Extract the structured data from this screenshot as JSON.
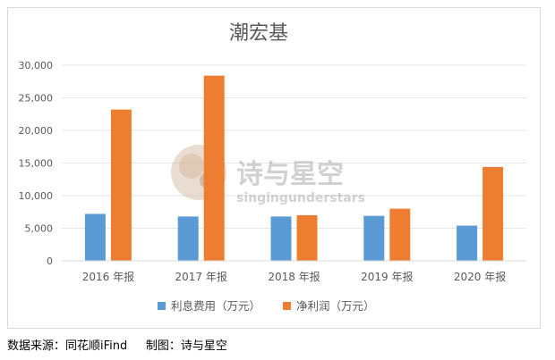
{
  "chart_data": {
    "type": "bar",
    "title": "潮宏基",
    "categories": [
      "2016 年报",
      "2017 年报",
      "2018 年报",
      "2019 年报",
      "2020 年报"
    ],
    "series": [
      {
        "name": "利息费用（万元）",
        "color": "#5b9bd5",
        "values": [
          7200,
          6800,
          6800,
          6900,
          5400
        ]
      },
      {
        "name": "净利润（万元）",
        "color": "#ed7d31",
        "values": [
          23200,
          28400,
          7000,
          8000,
          14400
        ]
      }
    ],
    "ylim": [
      0,
      30000
    ],
    "yticks": [
      "0",
      "5,000",
      "10,000",
      "15,000",
      "20,000",
      "25,000",
      "30,000"
    ],
    "ytick_values": [
      0,
      5000,
      10000,
      15000,
      20000,
      25000,
      30000
    ],
    "grid": true,
    "legend": "bottom"
  },
  "watermark": {
    "main": "诗与星空",
    "sub": "singingunderstars"
  },
  "footer": {
    "source": "数据来源：同花顺iFind",
    "author": "制图：诗与星空"
  }
}
